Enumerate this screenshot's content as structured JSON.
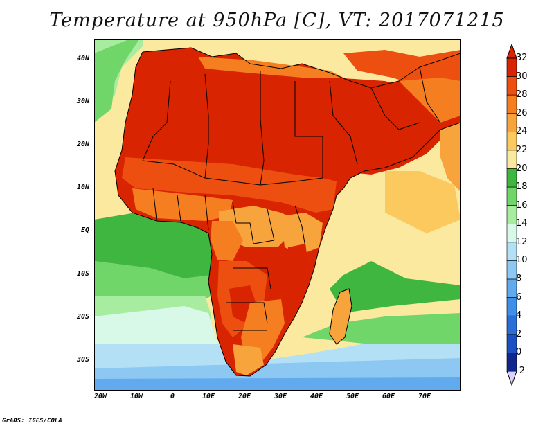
{
  "title": "Temperature at 950hPa [C], VT: 2017071215",
  "credit": "GrADS: IGES/COLA",
  "latitude_labels": [
    "40N",
    "30N",
    "20N",
    "10N",
    "EQ",
    "10S",
    "20S",
    "30S"
  ],
  "longitude_labels": [
    "20W",
    "10W",
    "0",
    "10E",
    "20E",
    "30E",
    "40E",
    "50E",
    "60E",
    "70E"
  ],
  "colorbar": {
    "labels": [
      "32",
      "30",
      "28",
      "26",
      "24",
      "22",
      "20",
      "18",
      "16",
      "14",
      "12",
      "10",
      "8",
      "6",
      "4",
      "2",
      "0",
      "-2"
    ],
    "colors_top_to_bottom": [
      "#d82400",
      "#ec4f10",
      "#f47e20",
      "#f8a43c",
      "#fbc95e",
      "#fbe9a0",
      "#3fb63f",
      "#70d66a",
      "#a8eca0",
      "#d8f8e8",
      "#b4e0f6",
      "#8cc8f2",
      "#62aaee",
      "#3f8ee8",
      "#2a6ed8",
      "#1c50c2",
      "#10288c"
    ],
    "under_color": "#dcd0ff",
    "over_color": "#d82400"
  },
  "map": {
    "extent": {
      "west": -22,
      "east": 80,
      "south": -36,
      "north": 45
    },
    "region": "Africa, Middle East and western Indian Ocean",
    "palette": {
      "ocean_warm": "#fbe9a0",
      "ocean_green": "#3fb63f",
      "ocean_mid": "#70d66a",
      "ocean_light": "#a8eca0",
      "ocean_pale": "#d8f8e8",
      "ocean_cool": "#b4e0f6",
      "ocean_cold": "#8cc8f2",
      "ocean_colder": "#62aaee",
      "land_hot": "#d82400",
      "land_warm": "#ec4f10",
      "land_mild": "#f47e20",
      "land_cool": "#f8a43c",
      "sea_warm": "#fbc95e"
    }
  }
}
